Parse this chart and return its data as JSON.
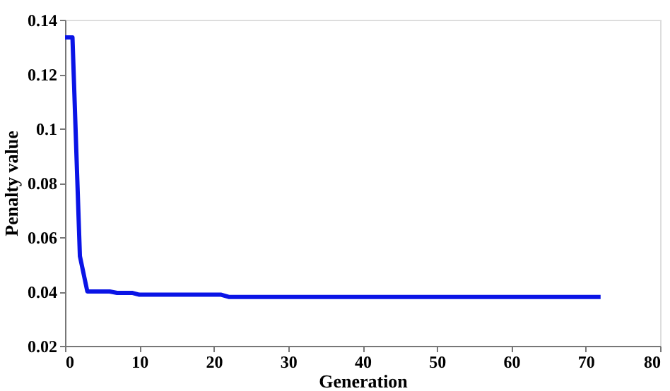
{
  "chart_data": {
    "type": "line",
    "xlabel": "Generation",
    "ylabel": "Penalty value",
    "series": [
      {
        "color": "#0a14e6",
        "x": [
          0,
          1,
          2,
          3,
          6,
          7,
          9,
          10,
          21,
          22,
          72
        ],
        "values": [
          0.1335,
          0.1335,
          0.053,
          0.04,
          0.04,
          0.0395,
          0.0395,
          0.0388,
          0.0388,
          0.038,
          0.038
        ]
      }
    ],
    "xlim": [
      0,
      80
    ],
    "xticks": [
      0,
      10,
      20,
      30,
      40,
      50,
      60,
      70,
      80
    ],
    "ylim": [
      0.02,
      0.14
    ],
    "yticks": [
      0.02,
      0.04,
      0.06,
      0.08,
      0.1,
      0.12,
      0.14
    ],
    "grid": false,
    "marker": "none",
    "line_style": "solid"
  }
}
